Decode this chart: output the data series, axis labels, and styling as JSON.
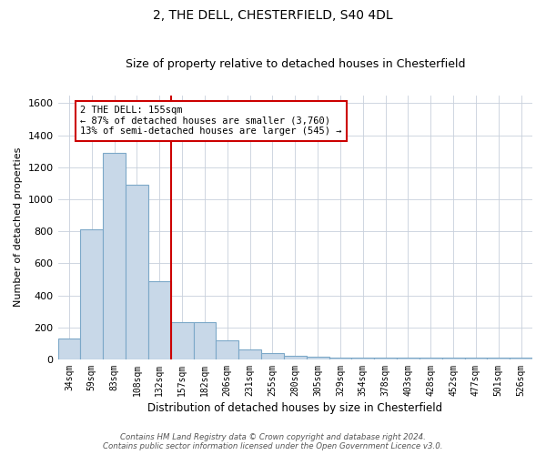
{
  "title": "2, THE DELL, CHESTERFIELD, S40 4DL",
  "subtitle": "Size of property relative to detached houses in Chesterfield",
  "xlabel": "Distribution of detached houses by size in Chesterfield",
  "ylabel": "Number of detached properties",
  "categories": [
    "34sqm",
    "59sqm",
    "83sqm",
    "108sqm",
    "132sqm",
    "157sqm",
    "182sqm",
    "206sqm",
    "231sqm",
    "255sqm",
    "280sqm",
    "305sqm",
    "329sqm",
    "354sqm",
    "378sqm",
    "403sqm",
    "428sqm",
    "452sqm",
    "477sqm",
    "501sqm",
    "526sqm"
  ],
  "values": [
    130,
    810,
    1290,
    1090,
    490,
    230,
    230,
    120,
    65,
    40,
    25,
    15,
    10,
    10,
    10,
    10,
    10,
    10,
    10,
    10,
    10
  ],
  "bar_color": "#c8d8e8",
  "bar_edge_color": "#7ca8c8",
  "red_line_index": 4,
  "annotation_line1": "2 THE DELL: 155sqm",
  "annotation_line2": "← 87% of detached houses are smaller (3,760)",
  "annotation_line3": "13% of semi-detached houses are larger (545) →",
  "annotation_box_color": "#ffffff",
  "annotation_box_edge_color": "#cc0000",
  "red_line_color": "#cc0000",
  "ylim": [
    0,
    1650
  ],
  "yticks": [
    0,
    200,
    400,
    600,
    800,
    1000,
    1200,
    1400,
    1600
  ],
  "footer_line1": "Contains HM Land Registry data © Crown copyright and database right 2024.",
  "footer_line2": "Contains public sector information licensed under the Open Government Licence v3.0.",
  "background_color": "#ffffff",
  "grid_color": "#c8d0dc",
  "title_fontsize": 10,
  "subtitle_fontsize": 9
}
